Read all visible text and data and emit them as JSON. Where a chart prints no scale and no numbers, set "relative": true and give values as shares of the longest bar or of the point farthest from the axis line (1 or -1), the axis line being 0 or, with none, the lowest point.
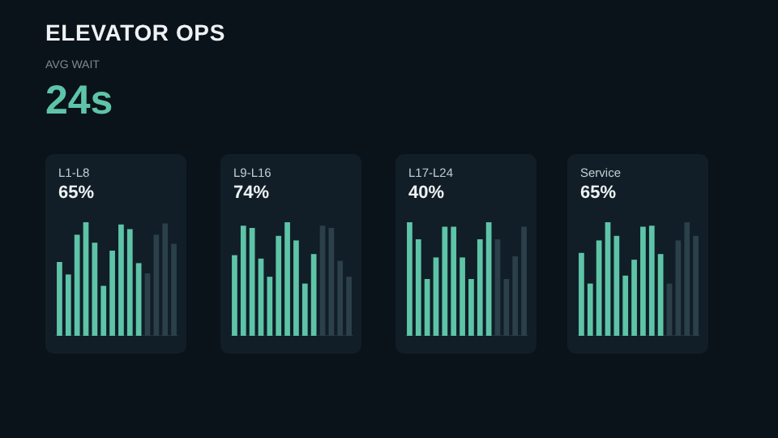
{
  "chart_data": [
    {
      "type": "other",
      "title": "ELEVATOR OPS",
      "subtitle": "AVG WAIT",
      "annotations": [
        "24s"
      ]
    },
    {
      "type": "bar",
      "title": "L1-L8",
      "subtitle": "65%",
      "relative": true,
      "categories": [
        null,
        null,
        null,
        null,
        null,
        null,
        null,
        null,
        null,
        null,
        null,
        null,
        null,
        null
      ],
      "values": [
        0.65,
        0.54,
        0.89,
        1,
        0.82,
        0.44,
        0.75,
        0.98,
        0.94,
        0.64,
        0.55,
        0.89,
        0.99,
        0.81
      ],
      "colors": [
        "#5ec4a8",
        "#5ec4a8",
        "#5ec4a8",
        "#5ec4a8",
        "#5ec4a8",
        "#5ec4a8",
        "#5ec4a8",
        "#5ec4a8",
        "#5ec4a8",
        "#5ec4a8",
        "#2b4049",
        "#2b4049",
        "#2b4049",
        "#2b4049"
      ]
    },
    {
      "type": "bar",
      "title": "L9-L16",
      "subtitle": "74%",
      "relative": true,
      "categories": [
        null,
        null,
        null,
        null,
        null,
        null,
        null,
        null,
        null,
        null,
        null,
        null,
        null,
        null
      ],
      "values": [
        0.71,
        0.97,
        0.95,
        0.68,
        0.52,
        0.88,
        1,
        0.84,
        0.46,
        0.72,
        0.97,
        0.95,
        0.66,
        0.52
      ],
      "colors": [
        "#5ec4a8",
        "#5ec4a8",
        "#5ec4a8",
        "#5ec4a8",
        "#5ec4a8",
        "#5ec4a8",
        "#5ec4a8",
        "#5ec4a8",
        "#5ec4a8",
        "#5ec4a8",
        "#2b4049",
        "#2b4049",
        "#2b4049",
        "#2b4049"
      ]
    },
    {
      "type": "bar",
      "title": "L17-L24",
      "subtitle": "40%",
      "relative": true,
      "categories": [
        null,
        null,
        null,
        null,
        null,
        null,
        null,
        null,
        null,
        null,
        null,
        null,
        null,
        null
      ],
      "values": [
        1,
        0.85,
        0.5,
        0.69,
        0.96,
        0.96,
        0.69,
        0.5,
        0.85,
        1,
        0.85,
        0.5,
        0.7,
        0.96
      ],
      "colors": [
        "#5ec4a8",
        "#5ec4a8",
        "#5ec4a8",
        "#5ec4a8",
        "#5ec4a8",
        "#5ec4a8",
        "#5ec4a8",
        "#5ec4a8",
        "#5ec4a8",
        "#5ec4a8",
        "#2b4049",
        "#2b4049",
        "#2b4049",
        "#2b4049"
      ]
    },
    {
      "type": "bar",
      "title": "Service",
      "subtitle": "65%",
      "relative": true,
      "categories": [
        null,
        null,
        null,
        null,
        null,
        null,
        null,
        null,
        null,
        null,
        null,
        null,
        null,
        null
      ],
      "values": [
        0.73,
        0.46,
        0.84,
        1,
        0.88,
        0.53,
        0.67,
        0.96,
        0.97,
        0.72,
        0.46,
        0.84,
        1,
        0.88
      ],
      "colors": [
        "#5ec4a8",
        "#5ec4a8",
        "#5ec4a8",
        "#5ec4a8",
        "#5ec4a8",
        "#5ec4a8",
        "#5ec4a8",
        "#5ec4a8",
        "#5ec4a8",
        "#5ec4a8",
        "#2b4049",
        "#2b4049",
        "#2b4049",
        "#2b4049"
      ]
    }
  ]
}
